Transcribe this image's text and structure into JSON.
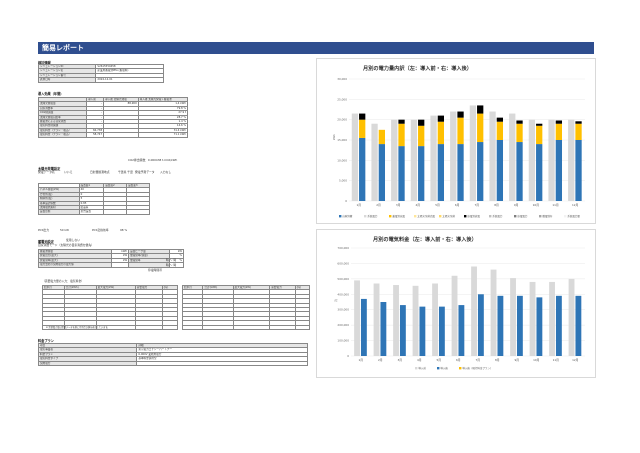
{
  "report": {
    "title": "簡易レポート"
  },
  "basic": {
    "section": "検討情報",
    "rows": [
      {
        "label": "シミュレーションID",
        "value": "S2615550458"
      },
      {
        "label": "シミュレーション名",
        "value": "産業用蓄電池PPA (蓄電料)"
      },
      {
        "label": "シミュレーション番号",
        "value": ""
      },
      {
        "label": "試算日時",
        "value": "2024-12-01"
      }
    ]
  },
  "effect": {
    "section": "導入効果（年間）",
    "headers": [
      "導入前",
      "導入後 太陽光発電",
      "導入後 太陽光発電＋蓄電池"
    ],
    "rows": [
      {
        "label": "太陽光発電量",
        "v1": "-",
        "v2": "88,900",
        "v3": "1,4 kWh"
      },
      {
        "label": "自家消費率",
        "v1": "-",
        "v2": "",
        "v3": "79.8 %"
      },
      {
        "label": "CO2削減量",
        "v1": "-",
        "v2": "",
        "v3": "27.9 t"
      },
      {
        "label": "太陽光発電自給率",
        "v1": "-",
        "v2": "",
        "v3": "28.7 %"
      },
      {
        "label": "蓄電池による自家消費",
        "v1": "-",
        "v2": "",
        "v3": "1.4 %"
      },
      {
        "label": "電気料金削減額",
        "v1": "-",
        "v2": "",
        "v3": "14.6 %"
      },
      {
        "label": "電気料金（プラン・税込）",
        "v1": "84,738",
        "v2": "",
        "v3": "31.4 kWh"
      },
      {
        "label": "電気料金（プラン・税込）",
        "v1": "58,747",
        "v2": "",
        "v3": "71.1 kWh"
      }
    ],
    "note": "CO2排出係数：0.000438 t-CO2/kWh"
  },
  "pv": {
    "section": "太陽光発電設定",
    "data_label": "発電データ名",
    "data_value": "いいえ",
    "ref1": "日射量観測地点",
    "ref2": "千葉県 千葉",
    "ref3": "発電予測データ",
    "ref4": "入力なし",
    "headers": [
      "設置面1",
      "設置面2",
      "設置面3"
    ],
    "rows": [
      {
        "label": "パネル容量(kW)",
        "v": "40"
      },
      {
        "label": "方位角(度)",
        "v": "0"
      },
      {
        "label": "傾斜角(度)",
        "v": "5"
      },
      {
        "label": "基本設計係数",
        "v": "0.85"
      },
      {
        "label": "太陽電池素材",
        "v": "結晶系"
      },
      {
        "label": "設置形態",
        "v": "架台設置"
      }
    ],
    "pcs_label": "PCS出力",
    "pcs_value": "50 kW",
    "pcs_eff_label": "PCS変換効率",
    "pcs_eff_value": "98 %"
  },
  "battery": {
    "section": "蓄電池設定",
    "status": "使用しない",
    "note": "自家消費モード（太陽光の自家消費を優先）",
    "rows": [
      {
        "a": "蓄電池容量",
        "b": "kWh",
        "c": "設置ピーク量",
        "d": "kW"
      },
      {
        "a": "充電出力(最大)",
        "b": "kW",
        "c": "放電効率(容量)",
        "d": "%"
      },
      {
        "a": "充電効率(最大)",
        "b": "kW",
        "c": "放電効率",
        "d": "%"
      },
      {
        "a": "電力会社の契約電力の最大値",
        "b": "",
        "c": "",
        "d": ""
      }
    ],
    "time1": "時 ～ 時",
    "time2": "時 ～ 時",
    "stop_label": "停電時間帯"
  },
  "demand": {
    "section_note": "（需要電力量の入力：電気料金）",
    "headers": [
      "給水月",
      "合計(kWh)",
      "最大電力(kW)",
      "需要電力",
      "(円)"
    ],
    "footnote": "※ 需要電力量は需要データを基に月別合計値を表示しています。"
  },
  "plan": {
    "section": "料金プラン",
    "headers": [
      "項目",
      "詳細"
    ],
    "rows": [
      {
        "label": "電気事業者",
        "value": "東京電力エナジーパートナー"
      },
      {
        "label": "料金プラン",
        "value": "6,000V 業務用電力"
      },
      {
        "label": "電気料金タイプ",
        "value": "基本料金併用型"
      },
      {
        "label": "契約電力",
        "value": ""
      }
    ]
  },
  "chart_data": [
    {
      "type": "bar",
      "title": "月別の電力量内訳（左：導入前・右：導入後）",
      "ylabel": "kWh",
      "ylim": [
        0,
        30000
      ],
      "yticks": [
        "0",
        "5,000",
        "10,000",
        "15,000",
        "20,000",
        "25,000",
        "30,000"
      ],
      "categories": [
        "1月",
        "2月",
        "3月",
        "4月",
        "5月",
        "6月",
        "7月",
        "8月",
        "9月",
        "10月",
        "11月",
        "12月"
      ],
      "before": [
        21500,
        19000,
        20000,
        20000,
        21000,
        22000,
        23500,
        22000,
        21500,
        20000,
        20000,
        20000
      ],
      "series": [
        {
          "name": "自家消費",
          "color": "#2e75b6",
          "values": [
            15500,
            14000,
            13500,
            13500,
            14000,
            14000,
            14500,
            15000,
            14500,
            14000,
            15000,
            15000
          ]
        },
        {
          "name": "系統電力",
          "color": "#ffc000",
          "values": [
            4500,
            3500,
            5500,
            5000,
            5500,
            6500,
            7000,
            4500,
            4500,
            4500,
            4000,
            4000
          ]
        },
        {
          "name": "放電電力",
          "color": "#000000",
          "values": [
            1500,
            0,
            1000,
            1500,
            1500,
            1500,
            2000,
            1000,
            800,
            500,
            800,
            600
          ]
        }
      ],
      "legend": [
        "自家消費",
        "系統電力",
        "蓄電池充電",
        "太陽光余剰売電",
        "太陽光余剰",
        "放電池放電",
        "系統電力",
        "放電電力",
        "購電残存",
        "系統電力量"
      ],
      "legend_colors": [
        "#2e75b6",
        "#d9d9d9",
        "#ffc000",
        "#ffe699",
        "#ffd966",
        "#000000",
        "#bfbfbf",
        "#7f7f7f",
        "#a6a6a6",
        "#f2f2f2"
      ]
    },
    {
      "type": "bar",
      "title": "月別の電気料金（左：導入前・右：導入後）",
      "ylabel": "円",
      "ylim": [
        0,
        700000
      ],
      "yticks": [
        "0",
        "100,000",
        "200,000",
        "300,000",
        "400,000",
        "500,000",
        "600,000",
        "700,000"
      ],
      "categories": [
        "1月",
        "2月",
        "3月",
        "4月",
        "5月",
        "6月",
        "7月",
        "8月",
        "9月",
        "10月",
        "11月",
        "12月"
      ],
      "series": [
        {
          "name": "導入前",
          "color": "#d9d9d9",
          "values": [
            490000,
            470000,
            460000,
            455000,
            470000,
            520000,
            580000,
            560000,
            505000,
            480000,
            480000,
            500000
          ]
        },
        {
          "name": "導入後",
          "color": "#2e75b6",
          "values": [
            370000,
            350000,
            330000,
            320000,
            320000,
            330000,
            400000,
            390000,
            390000,
            380000,
            390000,
            390000
          ]
        }
      ],
      "legend": [
        "導入前",
        "導入後",
        "導入後（現行料金プラン）"
      ],
      "legend_colors": [
        "#d9d9d9",
        "#2e75b6",
        "#ffc000"
      ]
    }
  ]
}
